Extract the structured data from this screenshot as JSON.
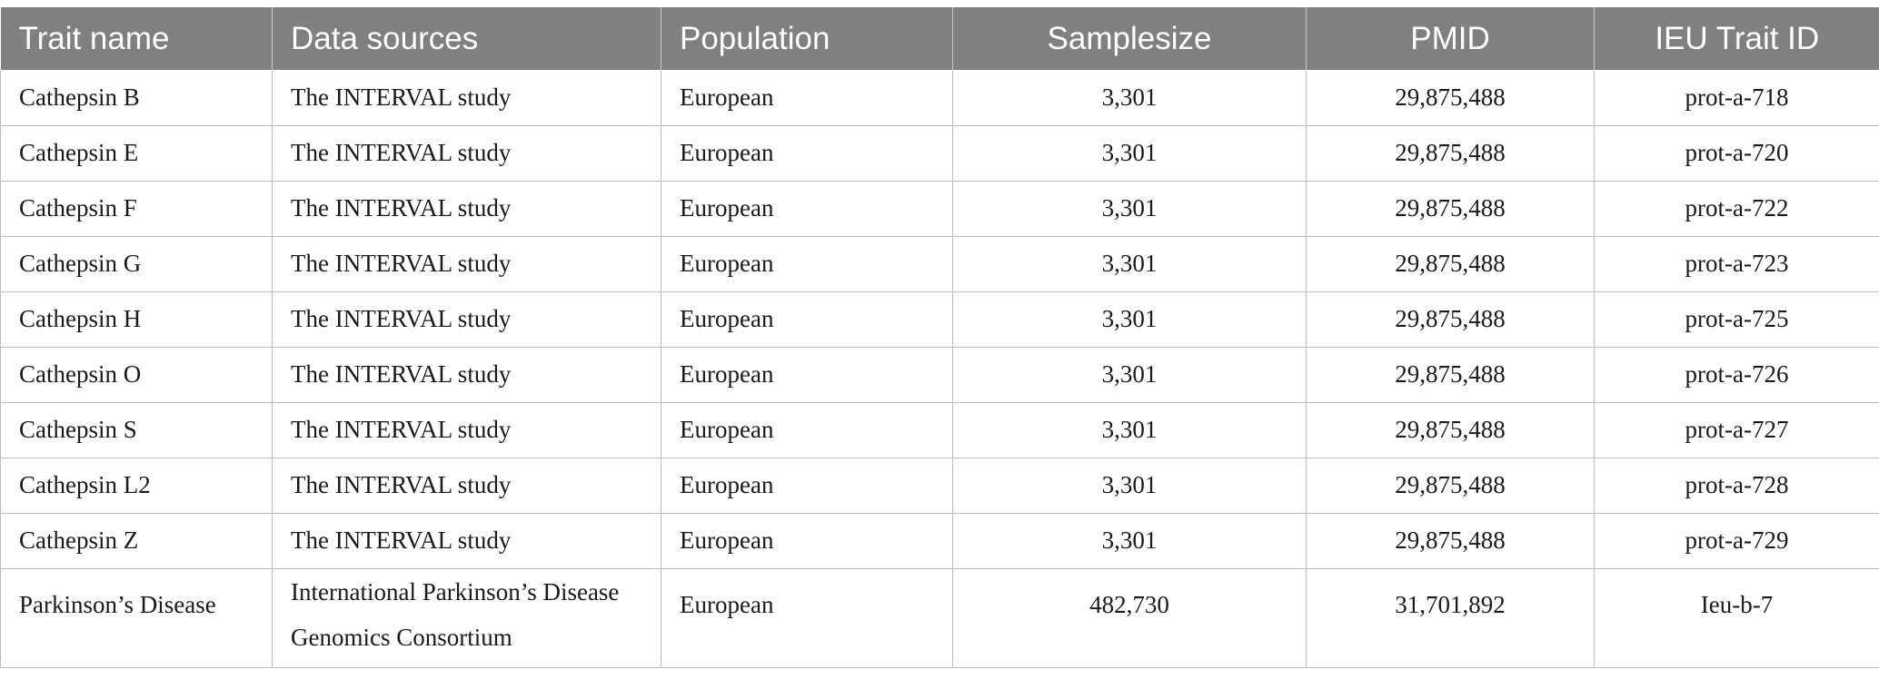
{
  "table": {
    "columns": [
      "Trait name",
      "Data sources",
      "Population",
      "Samplesize",
      "PMID",
      "IEU Trait ID"
    ],
    "rows": [
      [
        "Cathepsin B",
        "The INTERVAL study",
        "European",
        "3,301",
        "29,875,488",
        "prot-a-718"
      ],
      [
        "Cathepsin E",
        "The INTERVAL study",
        "European",
        "3,301",
        "29,875,488",
        "prot-a-720"
      ],
      [
        "Cathepsin F",
        "The INTERVAL study",
        "European",
        "3,301",
        "29,875,488",
        "prot-a-722"
      ],
      [
        "Cathepsin G",
        "The INTERVAL study",
        "European",
        "3,301",
        "29,875,488",
        "prot-a-723"
      ],
      [
        "Cathepsin H",
        "The INTERVAL study",
        "European",
        "3,301",
        "29,875,488",
        "prot-a-725"
      ],
      [
        "Cathepsin O",
        "The INTERVAL study",
        "European",
        "3,301",
        "29,875,488",
        "prot-a-726"
      ],
      [
        "Cathepsin S",
        "The INTERVAL study",
        "European",
        "3,301",
        "29,875,488",
        "prot-a-727"
      ],
      [
        "Cathepsin L2",
        "The INTERVAL study",
        "European",
        "3,301",
        "29,875,488",
        "prot-a-728"
      ],
      [
        "Cathepsin Z",
        "The INTERVAL study",
        "European",
        "3,301",
        "29,875,488",
        "prot-a-729"
      ],
      [
        "Parkinson’s Disease",
        "International Parkinson’s Disease Genomics Consortium",
        "European",
        "482,730",
        "31,701,892",
        "Ieu-b-7"
      ]
    ]
  },
  "colors": {
    "header_background": "#7f807f",
    "header_text": "#ffffff",
    "grid_lines": "#bdbdbd"
  }
}
